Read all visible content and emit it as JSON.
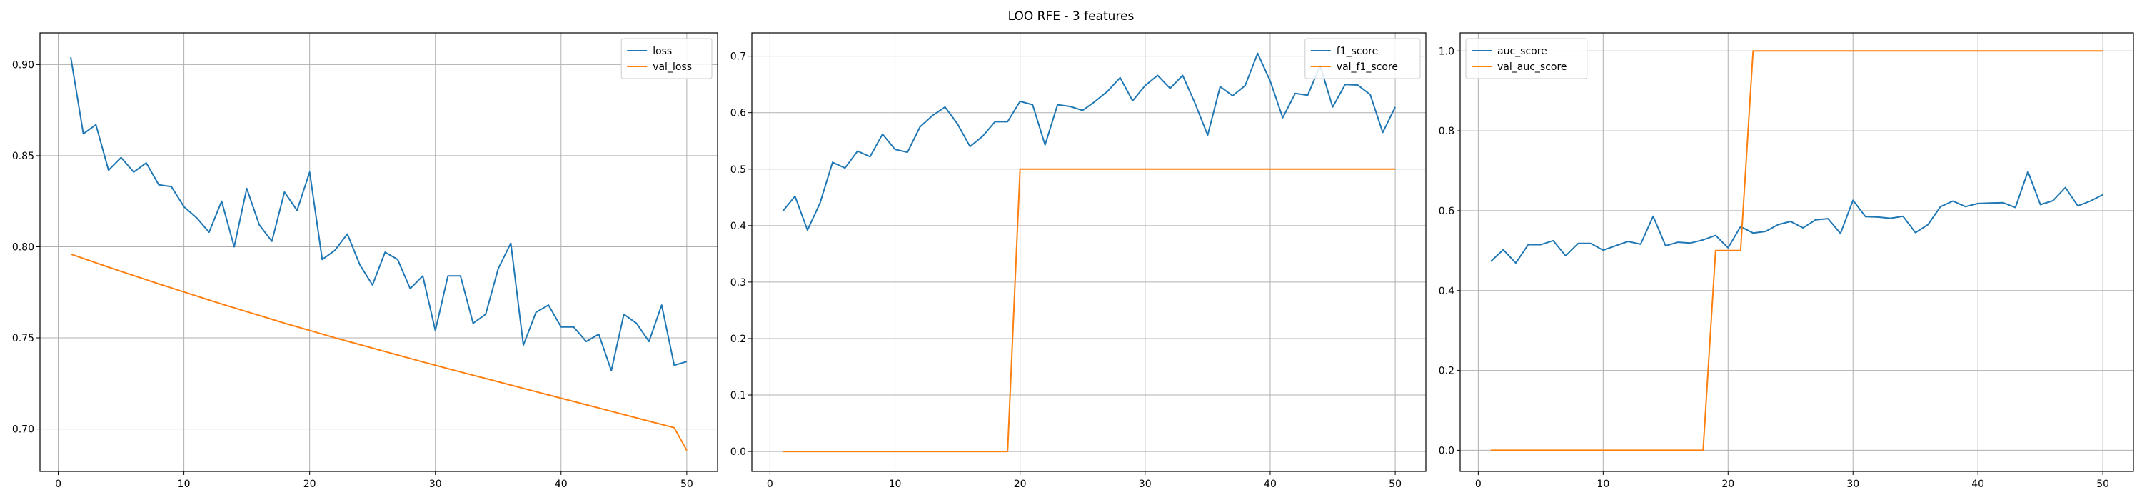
{
  "figure": {
    "title": "LOO RFE - 3 features"
  },
  "chart_data": [
    {
      "type": "line",
      "x": [
        1,
        2,
        3,
        4,
        5,
        6,
        7,
        8,
        9,
        10,
        11,
        12,
        13,
        14,
        15,
        16,
        17,
        18,
        19,
        20,
        21,
        22,
        23,
        24,
        25,
        26,
        27,
        28,
        29,
        30,
        31,
        32,
        33,
        34,
        35,
        36,
        37,
        38,
        39,
        40,
        41,
        42,
        43,
        44,
        45,
        46,
        47,
        48,
        49,
        50
      ],
      "xlim": [
        -1.45,
        52.45
      ],
      "ylim": [
        0.6767,
        0.9174
      ],
      "xticks": [
        0,
        10,
        20,
        30,
        40,
        50
      ],
      "yticks": [
        0.7,
        0.75,
        0.8,
        0.85,
        0.9
      ],
      "ytick_labels": [
        "0.70",
        "0.75",
        "0.80",
        "0.85",
        "0.90"
      ],
      "grid": true,
      "legend_position": "top-right",
      "series": [
        {
          "name": "loss",
          "color": "#1f77b4",
          "values": [
            0.904,
            0.862,
            0.867,
            0.842,
            0.849,
            0.841,
            0.846,
            0.834,
            0.833,
            0.822,
            0.816,
            0.808,
            0.825,
            0.8,
            0.832,
            0.812,
            0.803,
            0.83,
            0.82,
            0.841,
            0.793,
            0.798,
            0.807,
            0.79,
            0.779,
            0.797,
            0.793,
            0.777,
            0.784,
            0.754,
            0.784,
            0.784,
            0.758,
            0.763,
            0.788,
            0.802,
            0.746,
            0.764,
            0.768,
            0.756,
            0.756,
            0.748,
            0.752,
            0.732,
            0.763,
            0.758,
            0.748,
            0.768,
            0.735,
            0.737
          ]
        },
        {
          "name": "val_loss",
          "color": "#ff7f0e",
          "values": [
            0.796,
            0.7936,
            0.7912,
            0.7888,
            0.7865,
            0.7842,
            0.7819,
            0.7796,
            0.7774,
            0.7752,
            0.773,
            0.7708,
            0.7686,
            0.7665,
            0.7644,
            0.7623,
            0.7602,
            0.7581,
            0.7561,
            0.7541,
            0.7521,
            0.7501,
            0.7482,
            0.7463,
            0.7444,
            0.7425,
            0.7406,
            0.7387,
            0.7368,
            0.735,
            0.7331,
            0.7313,
            0.7295,
            0.7277,
            0.7259,
            0.7241,
            0.7223,
            0.7205,
            0.7187,
            0.7169,
            0.7151,
            0.7133,
            0.7115,
            0.7097,
            0.7079,
            0.7061,
            0.7043,
            0.7025,
            0.7007,
            0.6882
          ]
        }
      ]
    },
    {
      "type": "line",
      "x": [
        1,
        2,
        3,
        4,
        5,
        6,
        7,
        8,
        9,
        10,
        11,
        12,
        13,
        14,
        15,
        16,
        17,
        18,
        19,
        20,
        21,
        22,
        23,
        24,
        25,
        26,
        27,
        28,
        29,
        30,
        31,
        32,
        33,
        34,
        35,
        36,
        37,
        38,
        39,
        40,
        41,
        42,
        43,
        44,
        45,
        46,
        47,
        48,
        49,
        50
      ],
      "xlim": [
        -1.45,
        52.45
      ],
      "ylim": [
        -0.0353,
        0.7413
      ],
      "xticks": [
        0,
        10,
        20,
        30,
        40,
        50
      ],
      "yticks": [
        0.0,
        0.1,
        0.2,
        0.3,
        0.4,
        0.5,
        0.6,
        0.7
      ],
      "ytick_labels": [
        "0.0",
        "0.1",
        "0.2",
        "0.3",
        "0.4",
        "0.5",
        "0.6",
        "0.7"
      ],
      "grid": true,
      "legend_position": "top-right",
      "series": [
        {
          "name": "f1_score",
          "color": "#1f77b4",
          "values": [
            0.425,
            0.452,
            0.392,
            0.44,
            0.512,
            0.502,
            0.532,
            0.522,
            0.562,
            0.535,
            0.53,
            0.575,
            0.595,
            0.61,
            0.58,
            0.54,
            0.558,
            0.584,
            0.584,
            0.62,
            0.614,
            0.543,
            0.614,
            0.611,
            0.604,
            0.62,
            0.638,
            0.662,
            0.621,
            0.648,
            0.666,
            0.643,
            0.666,
            0.616,
            0.56,
            0.646,
            0.63,
            0.648,
            0.705,
            0.656,
            0.591,
            0.634,
            0.631,
            0.683,
            0.61,
            0.65,
            0.649,
            0.632,
            0.565,
            0.61
          ]
        },
        {
          "name": "val_f1_score",
          "color": "#ff7f0e",
          "values": [
            0,
            0,
            0,
            0,
            0,
            0,
            0,
            0,
            0,
            0,
            0,
            0,
            0,
            0,
            0,
            0,
            0,
            0,
            0,
            0.5,
            0.5,
            0.5,
            0.5,
            0.5,
            0.5,
            0.5,
            0.5,
            0.5,
            0.5,
            0.5,
            0.5,
            0.5,
            0.5,
            0.5,
            0.5,
            0.5,
            0.5,
            0.5,
            0.5,
            0.5,
            0.5,
            0.5,
            0.5,
            0.5,
            0.5,
            0.5,
            0.5,
            0.5,
            0.5,
            0.5
          ]
        }
      ]
    },
    {
      "type": "line",
      "x": [
        1,
        2,
        3,
        4,
        5,
        6,
        7,
        8,
        9,
        10,
        11,
        12,
        13,
        14,
        15,
        16,
        17,
        18,
        19,
        20,
        21,
        22,
        23,
        24,
        25,
        26,
        27,
        28,
        29,
        30,
        31,
        32,
        33,
        34,
        35,
        36,
        37,
        38,
        39,
        40,
        41,
        42,
        43,
        44,
        45,
        46,
        47,
        48,
        49,
        50
      ],
      "xlim": [
        -1.45,
        52.45
      ],
      "ylim": [
        -0.0529,
        1.0452
      ],
      "xticks": [
        0,
        10,
        20,
        30,
        40,
        50
      ],
      "yticks": [
        0.0,
        0.2,
        0.4,
        0.6,
        0.8,
        1.0
      ],
      "ytick_labels": [
        "0.0",
        "0.2",
        "0.4",
        "0.6",
        "0.8",
        "1.0"
      ],
      "grid": true,
      "legend_position": "top-left",
      "series": [
        {
          "name": "auc_score",
          "color": "#1f77b4",
          "values": [
            0.473,
            0.502,
            0.469,
            0.515,
            0.515,
            0.525,
            0.487,
            0.518,
            0.518,
            0.501,
            0.512,
            0.523,
            0.516,
            0.586,
            0.512,
            0.521,
            0.519,
            0.527,
            0.538,
            0.507,
            0.56,
            0.544,
            0.548,
            0.565,
            0.573,
            0.557,
            0.577,
            0.58,
            0.543,
            0.626,
            0.585,
            0.584,
            0.581,
            0.586,
            0.545,
            0.565,
            0.61,
            0.624,
            0.61,
            0.618,
            0.619,
            0.62,
            0.608,
            0.698,
            0.615,
            0.625,
            0.658,
            0.612,
            0.624,
            0.64
          ]
        },
        {
          "name": "val_auc_score",
          "color": "#ff7f0e",
          "values": [
            0,
            0,
            0,
            0,
            0,
            0,
            0,
            0,
            0,
            0,
            0,
            0,
            0,
            0,
            0,
            0,
            0,
            0,
            0.5,
            0.5,
            0.5,
            1,
            1,
            1,
            1,
            1,
            1,
            1,
            1,
            1,
            1,
            1,
            1,
            1,
            1,
            1,
            1,
            1,
            1,
            1,
            1,
            1,
            1,
            1,
            1,
            1,
            1,
            1,
            1,
            1
          ]
        }
      ]
    }
  ]
}
